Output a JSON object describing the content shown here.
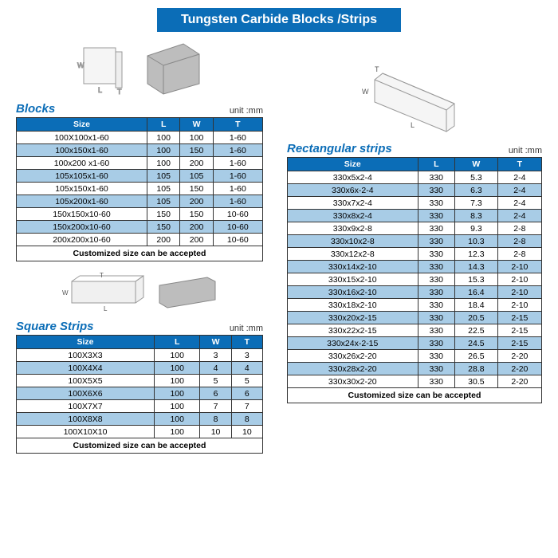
{
  "title": "Tungsten Carbide Blocks /Strips",
  "unit_label": "unit :mm",
  "footer_text": "Customized size can be accepted",
  "columns": [
    "Size",
    "L",
    "W",
    "T"
  ],
  "colors": {
    "brand": "#0b6db7",
    "stripe": "#a8cce6",
    "border": "#333333",
    "text": "#333333",
    "bg": "#ffffff"
  },
  "blocks": {
    "title": "Blocks",
    "rows": [
      {
        "size": "100X100x1-60",
        "L": "100",
        "W": "100",
        "T": "1-60"
      },
      {
        "size": "100x150x1-60",
        "L": "100",
        "W": "150",
        "T": "1-60"
      },
      {
        "size": "100x200 x1-60",
        "L": "100",
        "W": "200",
        "T": "1-60"
      },
      {
        "size": "105x105x1-60",
        "L": "105",
        "W": "105",
        "T": "1-60"
      },
      {
        "size": "105x150x1-60",
        "L": "105",
        "W": "150",
        "T": "1-60"
      },
      {
        "size": "105x200x1-60",
        "L": "105",
        "W": "200",
        "T": "1-60"
      },
      {
        "size": "150x150x10-60",
        "L": "150",
        "W": "150",
        "T": "10-60"
      },
      {
        "size": "150x200x10-60",
        "L": "150",
        "W": "200",
        "T": "10-60"
      },
      {
        "size": "200x200x10-60",
        "L": "200",
        "W": "200",
        "T": "10-60"
      }
    ]
  },
  "square_strips": {
    "title": "Square Strips",
    "rows": [
      {
        "size": "100X3X3",
        "L": "100",
        "W": "3",
        "T": "3"
      },
      {
        "size": "100X4X4",
        "L": "100",
        "W": "4",
        "T": "4"
      },
      {
        "size": "100X5X5",
        "L": "100",
        "W": "5",
        "T": "5"
      },
      {
        "size": "100X6X6",
        "L": "100",
        "W": "6",
        "T": "6"
      },
      {
        "size": "100X7X7",
        "L": "100",
        "W": "7",
        "T": "7"
      },
      {
        "size": "100X8X8",
        "L": "100",
        "W": "8",
        "T": "8"
      },
      {
        "size": "100X10X10",
        "L": "100",
        "W": "10",
        "T": "10"
      }
    ]
  },
  "rect_strips": {
    "title": "Rectangular strips",
    "rows": [
      {
        "size": "330x5x2-4",
        "L": "330",
        "W": "5.3",
        "T": "2-4"
      },
      {
        "size": "330x6x-2-4",
        "L": "330",
        "W": "6.3",
        "T": "2-4"
      },
      {
        "size": "330x7x2-4",
        "L": "330",
        "W": "7.3",
        "T": "2-4"
      },
      {
        "size": "330x8x2-4",
        "L": "330",
        "W": "8.3",
        "T": "2-4"
      },
      {
        "size": "330x9x2-8",
        "L": "330",
        "W": "9.3",
        "T": "2-8"
      },
      {
        "size": "330x10x2-8",
        "L": "330",
        "W": "10.3",
        "T": "2-8"
      },
      {
        "size": "330x12x2-8",
        "L": "330",
        "W": "12.3",
        "T": "2-8"
      },
      {
        "size": "330x14x2-10",
        "L": "330",
        "W": "14.3",
        "T": "2-10"
      },
      {
        "size": "330x15x2-10",
        "L": "330",
        "W": "15.3",
        "T": "2-10"
      },
      {
        "size": "330x16x2-10",
        "L": "330",
        "W": "16.4",
        "T": "2-10"
      },
      {
        "size": "330x18x2-10",
        "L": "330",
        "W": "18.4",
        "T": "2-10"
      },
      {
        "size": "330x20x2-15",
        "L": "330",
        "W": "20.5",
        "T": "2-15"
      },
      {
        "size": "330x22x2-15",
        "L": "330",
        "W": "22.5",
        "T": "2-15"
      },
      {
        "size": "330x24x-2-15",
        "L": "330",
        "W": "24.5",
        "T": "2-15"
      },
      {
        "size": "330x26x2-20",
        "L": "330",
        "W": "26.5",
        "T": "2-20"
      },
      {
        "size": "330x28x2-20",
        "L": "330",
        "W": "28.8",
        "T": "2-20"
      },
      {
        "size": "330x30x2-20",
        "L": "330",
        "W": "30.5",
        "T": "2-20"
      }
    ]
  }
}
